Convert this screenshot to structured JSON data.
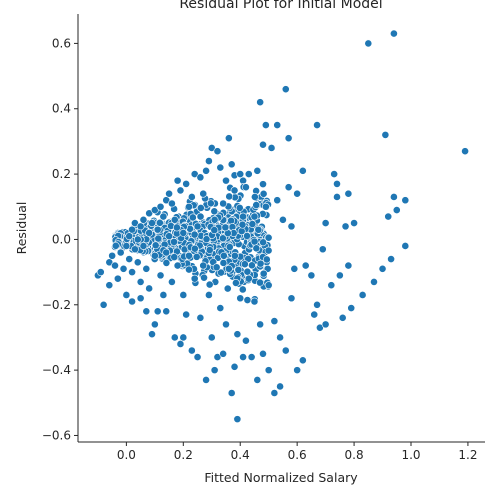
{
  "chart_data": {
    "type": "scatter",
    "title": "Residual Plot for Initial Model",
    "xlabel": "Fitted Normalized Salary",
    "ylabel": "Residual",
    "xlim": [
      -0.17,
      1.26
    ],
    "ylim": [
      -0.62,
      0.69
    ],
    "xticks": [
      0.0,
      0.2,
      0.4,
      0.6,
      0.8,
      1.0,
      1.2
    ],
    "xtick_labels": [
      "0.0",
      "0.2",
      "0.4",
      "0.6",
      "0.8",
      "1.0",
      "1.2"
    ],
    "yticks": [
      -0.6,
      -0.4,
      -0.2,
      0.0,
      0.2,
      0.4,
      0.6
    ],
    "ytick_labels": [
      "−0.6",
      "−0.4",
      "−0.2",
      "0.0",
      "0.2",
      "0.4",
      "0.6"
    ],
    "grid": false,
    "point_color": "#1f77b4",
    "point_edge_color": "#ffffff",
    "points": [
      {
        "x": -0.1,
        "y": -0.11
      },
      {
        "x": -0.09,
        "y": -0.1
      },
      {
        "x": -0.08,
        "y": -0.2
      },
      {
        "x": -0.06,
        "y": -0.07
      },
      {
        "x": -0.06,
        "y": -0.14
      },
      {
        "x": -0.05,
        "y": -0.05
      },
      {
        "x": -0.04,
        "y": -0.08
      },
      {
        "x": -0.03,
        "y": -0.12
      },
      {
        "x": -0.02,
        "y": -0.04
      },
      {
        "x": -0.01,
        "y": -0.09
      },
      {
        "x": 0.0,
        "y": -0.02
      },
      {
        "x": 0.0,
        "y": -0.17
      },
      {
        "x": 0.01,
        "y": 0.01
      },
      {
        "x": 0.01,
        "y": -0.06
      },
      {
        "x": 0.02,
        "y": 0.03
      },
      {
        "x": 0.02,
        "y": -0.1
      },
      {
        "x": 0.02,
        "y": -0.19
      },
      {
        "x": 0.03,
        "y": -0.03
      },
      {
        "x": 0.03,
        "y": 0.05
      },
      {
        "x": 0.04,
        "y": -0.07
      },
      {
        "x": 0.04,
        "y": 0.0
      },
      {
        "x": 0.05,
        "y": 0.04
      },
      {
        "x": 0.05,
        "y": -0.13
      },
      {
        "x": 0.05,
        "y": -0.18
      },
      {
        "x": 0.06,
        "y": 0.06
      },
      {
        "x": 0.06,
        "y": -0.02
      },
      {
        "x": 0.07,
        "y": -0.09
      },
      {
        "x": 0.07,
        "y": -0.22
      },
      {
        "x": 0.08,
        "y": 0.08
      },
      {
        "x": 0.08,
        "y": 0.02
      },
      {
        "x": 0.08,
        "y": -0.15
      },
      {
        "x": 0.09,
        "y": -0.29
      },
      {
        "x": 0.09,
        "y": 0.05
      },
      {
        "x": 0.1,
        "y": -0.26
      },
      {
        "x": 0.1,
        "y": 0.09
      },
      {
        "x": 0.1,
        "y": -0.05
      },
      {
        "x": 0.11,
        "y": -0.22
      },
      {
        "x": 0.11,
        "y": 0.03
      },
      {
        "x": 0.12,
        "y": 0.1
      },
      {
        "x": 0.12,
        "y": -0.11
      },
      {
        "x": 0.13,
        "y": 0.07
      },
      {
        "x": 0.13,
        "y": -0.17
      },
      {
        "x": 0.14,
        "y": 0.12
      },
      {
        "x": 0.14,
        "y": -0.04
      },
      {
        "x": 0.14,
        "y": -0.22
      },
      {
        "x": 0.15,
        "y": 0.14
      },
      {
        "x": 0.15,
        "y": 0.01
      },
      {
        "x": 0.16,
        "y": -0.13
      },
      {
        "x": 0.16,
        "y": 0.11
      },
      {
        "x": 0.17,
        "y": -0.3
      },
      {
        "x": 0.17,
        "y": 0.06
      },
      {
        "x": 0.18,
        "y": 0.18
      },
      {
        "x": 0.18,
        "y": -0.08
      },
      {
        "x": 0.19,
        "y": -0.32
      },
      {
        "x": 0.19,
        "y": 0.15
      },
      {
        "x": 0.2,
        "y": 0.02
      },
      {
        "x": 0.2,
        "y": -0.3
      },
      {
        "x": 0.2,
        "y": -0.17
      },
      {
        "x": 0.21,
        "y": 0.17
      },
      {
        "x": 0.21,
        "y": -0.23
      },
      {
        "x": 0.22,
        "y": 0.1
      },
      {
        "x": 0.22,
        "y": -0.05
      },
      {
        "x": 0.23,
        "y": -0.34
      },
      {
        "x": 0.23,
        "y": 0.13
      },
      {
        "x": 0.24,
        "y": -0.12
      },
      {
        "x": 0.24,
        "y": 0.2
      },
      {
        "x": 0.25,
        "y": -0.36
      },
      {
        "x": 0.25,
        "y": 0.04
      },
      {
        "x": 0.26,
        "y": -0.24
      },
      {
        "x": 0.26,
        "y": 0.19
      },
      {
        "x": 0.27,
        "y": -0.08
      },
      {
        "x": 0.27,
        "y": 0.14
      },
      {
        "x": 0.28,
        "y": -0.43
      },
      {
        "x": 0.28,
        "y": 0.21
      },
      {
        "x": 0.29,
        "y": -0.17
      },
      {
        "x": 0.29,
        "y": 0.24
      },
      {
        "x": 0.3,
        "y": -0.3
      },
      {
        "x": 0.3,
        "y": 0.28
      },
      {
        "x": 0.31,
        "y": -0.4
      },
      {
        "x": 0.31,
        "y": 0.06
      },
      {
        "x": 0.32,
        "y": -0.36
      },
      {
        "x": 0.32,
        "y": 0.27
      },
      {
        "x": 0.33,
        "y": -0.21
      },
      {
        "x": 0.33,
        "y": 0.22
      },
      {
        "x": 0.34,
        "y": -0.35
      },
      {
        "x": 0.34,
        "y": 0.11
      },
      {
        "x": 0.35,
        "y": -0.26
      },
      {
        "x": 0.35,
        "y": 0.18
      },
      {
        "x": 0.36,
        "y": 0.31
      },
      {
        "x": 0.36,
        "y": -0.09
      },
      {
        "x": 0.37,
        "y": -0.47
      },
      {
        "x": 0.37,
        "y": 0.23
      },
      {
        "x": 0.38,
        "y": -0.39
      },
      {
        "x": 0.38,
        "y": 0.15
      },
      {
        "x": 0.39,
        "y": -0.55
      },
      {
        "x": 0.39,
        "y": -0.29
      },
      {
        "x": 0.4,
        "y": 0.2
      },
      {
        "x": 0.4,
        "y": -0.18
      },
      {
        "x": 0.41,
        "y": -0.36
      },
      {
        "x": 0.41,
        "y": 0.07
      },
      {
        "x": 0.42,
        "y": -0.31
      },
      {
        "x": 0.42,
        "y": 0.16
      },
      {
        "x": 0.43,
        "y": -0.12
      },
      {
        "x": 0.43,
        "y": 0.2
      },
      {
        "x": 0.44,
        "y": -0.36
      },
      {
        "x": 0.45,
        "y": -0.19
      },
      {
        "x": 0.45,
        "y": 0.07
      },
      {
        "x": 0.46,
        "y": -0.43
      },
      {
        "x": 0.46,
        "y": 0.21
      },
      {
        "x": 0.47,
        "y": 0.42
      },
      {
        "x": 0.47,
        "y": -0.26
      },
      {
        "x": 0.48,
        "y": 0.29
      },
      {
        "x": 0.48,
        "y": -0.35
      },
      {
        "x": 0.49,
        "y": 0.35
      },
      {
        "x": 0.49,
        "y": 0.1
      },
      {
        "x": 0.5,
        "y": -0.4
      },
      {
        "x": 0.5,
        "y": -0.14
      },
      {
        "x": 0.51,
        "y": 0.28
      },
      {
        "x": 0.52,
        "y": -0.47
      },
      {
        "x": 0.52,
        "y": -0.25
      },
      {
        "x": 0.53,
        "y": 0.35
      },
      {
        "x": 0.53,
        "y": 0.12
      },
      {
        "x": 0.54,
        "y": -0.45
      },
      {
        "x": 0.54,
        "y": -0.3
      },
      {
        "x": 0.55,
        "y": 0.06
      },
      {
        "x": 0.56,
        "y": 0.46
      },
      {
        "x": 0.56,
        "y": -0.34
      },
      {
        "x": 0.57,
        "y": 0.31
      },
      {
        "x": 0.57,
        "y": 0.16
      },
      {
        "x": 0.58,
        "y": -0.18
      },
      {
        "x": 0.58,
        "y": 0.04
      },
      {
        "x": 0.59,
        "y": -0.09
      },
      {
        "x": 0.6,
        "y": 0.14
      },
      {
        "x": 0.6,
        "y": -0.4
      },
      {
        "x": 0.62,
        "y": -0.37
      },
      {
        "x": 0.62,
        "y": 0.21
      },
      {
        "x": 0.63,
        "y": -0.08
      },
      {
        "x": 0.65,
        "y": -0.11
      },
      {
        "x": 0.66,
        "y": -0.23
      },
      {
        "x": 0.67,
        "y": 0.35
      },
      {
        "x": 0.67,
        "y": -0.2
      },
      {
        "x": 0.68,
        "y": -0.27
      },
      {
        "x": 0.69,
        "y": -0.03
      },
      {
        "x": 0.7,
        "y": 0.05
      },
      {
        "x": 0.7,
        "y": -0.26
      },
      {
        "x": 0.72,
        "y": -0.14
      },
      {
        "x": 0.73,
        "y": 0.2
      },
      {
        "x": 0.74,
        "y": 0.17
      },
      {
        "x": 0.74,
        "y": 0.13
      },
      {
        "x": 0.75,
        "y": -0.11
      },
      {
        "x": 0.76,
        "y": -0.24
      },
      {
        "x": 0.77,
        "y": 0.04
      },
      {
        "x": 0.78,
        "y": 0.14
      },
      {
        "x": 0.78,
        "y": -0.08
      },
      {
        "x": 0.79,
        "y": -0.21
      },
      {
        "x": 0.8,
        "y": 0.05
      },
      {
        "x": 0.83,
        "y": -0.17
      },
      {
        "x": 0.85,
        "y": 0.6
      },
      {
        "x": 0.87,
        "y": -0.13
      },
      {
        "x": 0.9,
        "y": -0.09
      },
      {
        "x": 0.91,
        "y": 0.32
      },
      {
        "x": 0.92,
        "y": 0.07
      },
      {
        "x": 0.93,
        "y": -0.06
      },
      {
        "x": 0.94,
        "y": 0.63
      },
      {
        "x": 0.94,
        "y": 0.13
      },
      {
        "x": 0.95,
        "y": 0.09
      },
      {
        "x": 0.98,
        "y": 0.12
      },
      {
        "x": 0.98,
        "y": -0.02
      },
      {
        "x": 1.19,
        "y": 0.27
      }
    ]
  }
}
